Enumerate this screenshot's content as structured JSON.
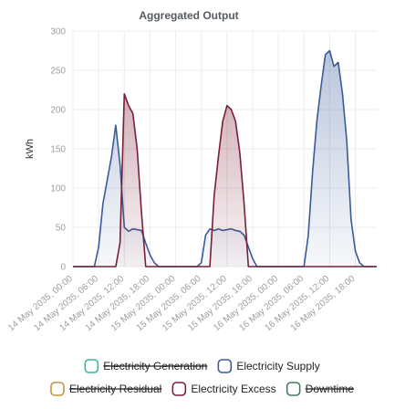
{
  "chart_data": {
    "type": "area",
    "title": "Aggregated Output",
    "ylabel": "kWh",
    "ylim": [
      0,
      300
    ],
    "yticks": [
      0,
      50,
      100,
      150,
      200,
      250,
      300
    ],
    "grid": true,
    "legend_position": "bottom",
    "x_tick_labels": [
      "14 May 2035, 00:00",
      "14 May 2035, 06:00",
      "14 May 2035, 12:00",
      "14 May 2035, 18:00",
      "15 May 2035, 00:00",
      "15 May 2035, 06:00",
      "15 May 2035, 12:00",
      "15 May 2035, 18:00",
      "16 May 2035, 00:00",
      "16 May 2035, 06:00",
      "16 May 2035, 12:00",
      "16 May 2035, 18:00"
    ],
    "x_hours": [
      0,
      1,
      2,
      3,
      4,
      5,
      6,
      7,
      8,
      9,
      10,
      11,
      12,
      13,
      14,
      15,
      16,
      17,
      18,
      19,
      20,
      21,
      22,
      23,
      24,
      25,
      26,
      27,
      28,
      29,
      30,
      31,
      32,
      33,
      34,
      35,
      36,
      37,
      38,
      39,
      40,
      41,
      42,
      43,
      44,
      45,
      46,
      47,
      48,
      49,
      50,
      51,
      52,
      53,
      54,
      55,
      56,
      57,
      58,
      59,
      60,
      61,
      62,
      63,
      64,
      65,
      66,
      67,
      68,
      69,
      70,
      71
    ],
    "series": [
      {
        "name": "Electricity Supply",
        "color": "#3a5a9b",
        "visible": true,
        "values": [
          0,
          0,
          0,
          0,
          0,
          0,
          25,
          80,
          110,
          140,
          180,
          130,
          50,
          45,
          48,
          47,
          46,
          30,
          15,
          5,
          0,
          0,
          0,
          0,
          0,
          0,
          0,
          0,
          0,
          0,
          5,
          40,
          48,
          46,
          48,
          46,
          47,
          48,
          46,
          45,
          40,
          25,
          10,
          0,
          0,
          0,
          0,
          0,
          0,
          0,
          0,
          0,
          0,
          0,
          0,
          40,
          120,
          185,
          230,
          270,
          275,
          255,
          260,
          220,
          160,
          60,
          20,
          5,
          0,
          0,
          0,
          0
        ]
      },
      {
        "name": "Electricity Excess",
        "color": "#7a1f35",
        "visible": true,
        "values": [
          0,
          0,
          0,
          0,
          0,
          0,
          0,
          0,
          0,
          0,
          0,
          30,
          220,
          205,
          195,
          150,
          70,
          0,
          0,
          0,
          0,
          0,
          0,
          0,
          0,
          0,
          0,
          0,
          0,
          0,
          0,
          0,
          0,
          90,
          140,
          185,
          205,
          200,
          185,
          145,
          80,
          0,
          0,
          0,
          0,
          0,
          0,
          0,
          0,
          0,
          0,
          0,
          0,
          0,
          0,
          0,
          0,
          0,
          0,
          0,
          0,
          0,
          0,
          0,
          0,
          0,
          0,
          0,
          0,
          0,
          0,
          0
        ]
      }
    ],
    "legend": [
      {
        "name": "Electricity Generation",
        "color": "#37b5a0",
        "hidden": true
      },
      {
        "name": "Electricity Supply",
        "color": "#3a5a9b",
        "hidden": false
      },
      {
        "name": "Electricity Residual",
        "color": "#c4933f",
        "hidden": true
      },
      {
        "name": "Electricity Excess",
        "color": "#7a1f35",
        "hidden": false
      },
      {
        "name": "Downtime",
        "color": "#4a7a5c",
        "hidden": true
      }
    ]
  }
}
